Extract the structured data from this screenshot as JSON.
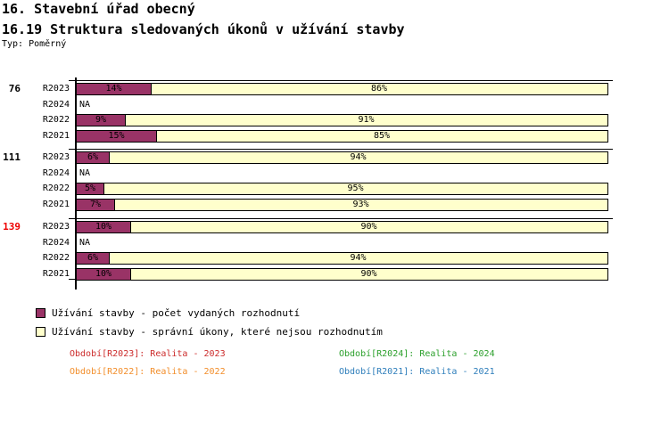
{
  "header": {
    "title_line1": "16. Stavební úřad obecný",
    "title_line2": "16.19 Struktura sledovaných úkonů v užívání stavby",
    "type_label": "Typ: Poměrný"
  },
  "chart_data": {
    "type": "bar",
    "orientation": "horizontal",
    "stacked": true,
    "value_unit": "percent",
    "x_range": [
      0,
      100
    ],
    "na_text": "NA",
    "series": [
      {
        "name": "Užívání stavby - počet vydaných rozhodnutí",
        "color": "#993366"
      },
      {
        "name": "Užívání stavby - správní úkony, které nejsou rozhodnutím",
        "color": "#FFFFCC"
      }
    ],
    "groups": [
      {
        "label": "76",
        "label_color": "#000000",
        "rows": [
          {
            "period": "R2023",
            "values": [
              14,
              86
            ]
          },
          {
            "period": "R2024",
            "values": null
          },
          {
            "period": "R2022",
            "values": [
              9,
              91
            ]
          },
          {
            "period": "R2021",
            "values": [
              15,
              85
            ]
          }
        ]
      },
      {
        "label": "111",
        "label_color": "#000000",
        "rows": [
          {
            "period": "R2023",
            "values": [
              6,
              94
            ]
          },
          {
            "period": "R2024",
            "values": null
          },
          {
            "period": "R2022",
            "values": [
              5,
              95
            ]
          },
          {
            "period": "R2021",
            "values": [
              7,
              93
            ]
          }
        ]
      },
      {
        "label": "139",
        "label_color": "#EE0000",
        "rows": [
          {
            "period": "R2023",
            "values": [
              10,
              90
            ]
          },
          {
            "period": "R2024",
            "values": null
          },
          {
            "period": "R2022",
            "values": [
              6,
              94
            ]
          },
          {
            "period": "R2021",
            "values": [
              10,
              90
            ]
          }
        ]
      }
    ]
  },
  "legend": {
    "items": [
      {
        "label": "Užívání stavby - počet vydaných rozhodnutí",
        "color": "#993366"
      },
      {
        "label": "Užívání stavby - správní úkony, které nejsou rozhodnutím",
        "color": "#FFFFCC"
      }
    ]
  },
  "footer": {
    "items": [
      {
        "text": "Období[R2023]: Realita - 2023",
        "color": "#CC2B2B"
      },
      {
        "text": "Období[R2024]: Realita - 2024",
        "color": "#2CA02C"
      },
      {
        "text": "Období[R2022]: Realita - 2022",
        "color": "#F28E2B"
      },
      {
        "text": "Období[R2021]: Realita - 2021",
        "color": "#2E7EBB"
      }
    ]
  }
}
